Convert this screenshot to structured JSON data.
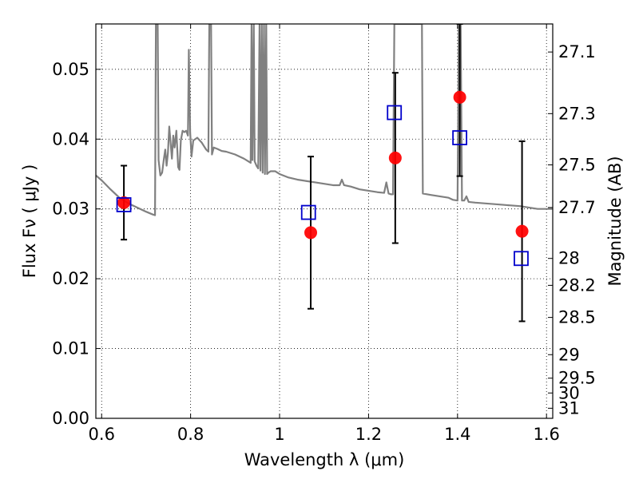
{
  "chart_data": {
    "type": "scatter",
    "xlabel": "Wavelength  λ (μm)",
    "ylabel": "Flux  Fν  ( μJy )",
    "y2label": "Magnitude (AB)",
    "xlim": [
      0.587,
      1.614
    ],
    "ylim": [
      0.0,
      0.0565
    ],
    "grid": true,
    "x_ticks": [
      {
        "value": 0.6,
        "label": "0.6"
      },
      {
        "value": 0.8,
        "label": "0.8"
      },
      {
        "value": 1.0,
        "label": "1"
      },
      {
        "value": 1.2,
        "label": "1.2"
      },
      {
        "value": 1.4,
        "label": "1.4"
      },
      {
        "value": 1.6,
        "label": "1.6"
      }
    ],
    "y_ticks": [
      {
        "value": 0.0,
        "label": "0.00"
      },
      {
        "value": 0.01,
        "label": "0.01"
      },
      {
        "value": 0.02,
        "label": "0.02"
      },
      {
        "value": 0.03,
        "label": "0.03"
      },
      {
        "value": 0.04,
        "label": "0.04"
      },
      {
        "value": 0.05,
        "label": "0.05"
      }
    ],
    "y2_ticks": [
      {
        "value": 27.1,
        "label": "27.1"
      },
      {
        "value": 27.3,
        "label": "27.3"
      },
      {
        "value": 27.5,
        "label": "27.5"
      },
      {
        "value": 27.7,
        "label": "27.7"
      },
      {
        "value": 28.0,
        "label": "28"
      },
      {
        "value": 28.2,
        "label": "28.2"
      },
      {
        "value": 28.5,
        "label": "28.5"
      },
      {
        "value": 29.0,
        "label": "29"
      },
      {
        "value": 29.5,
        "label": "29.5"
      },
      {
        "value": 30.0,
        "label": "30"
      },
      {
        "value": 31.0,
        "label": "31"
      }
    ],
    "series": [
      {
        "kind": "line",
        "color": "#808080",
        "points": [
          [
            0.587,
            0.0348
          ],
          [
            0.6,
            0.0341
          ],
          [
            0.62,
            0.0328
          ],
          [
            0.64,
            0.0316
          ],
          [
            0.66,
            0.0308
          ],
          [
            0.68,
            0.0302
          ],
          [
            0.7,
            0.0296
          ],
          [
            0.715,
            0.0292
          ],
          [
            0.72,
            0.0291
          ],
          [
            0.722,
            0.0565
          ],
          [
            0.726,
            0.0565
          ],
          [
            0.728,
            0.037
          ],
          [
            0.732,
            0.0348
          ],
          [
            0.736,
            0.0352
          ],
          [
            0.74,
            0.0372
          ],
          [
            0.743,
            0.0385
          ],
          [
            0.746,
            0.0362
          ],
          [
            0.749,
            0.038
          ],
          [
            0.752,
            0.0418
          ],
          [
            0.755,
            0.0395
          ],
          [
            0.758,
            0.0372
          ],
          [
            0.761,
            0.0405
          ],
          [
            0.764,
            0.0388
          ],
          [
            0.768,
            0.0412
          ],
          [
            0.772,
            0.036
          ],
          [
            0.775,
            0.0356
          ],
          [
            0.778,
            0.0398
          ],
          [
            0.782,
            0.0412
          ],
          [
            0.786,
            0.041
          ],
          [
            0.79,
            0.0412
          ],
          [
            0.794,
            0.0405
          ],
          [
            0.796,
            0.0528
          ],
          [
            0.799,
            0.041
          ],
          [
            0.802,
            0.0375
          ],
          [
            0.806,
            0.0398
          ],
          [
            0.815,
            0.0402
          ],
          [
            0.825,
            0.0395
          ],
          [
            0.835,
            0.0385
          ],
          [
            0.84,
            0.0382
          ],
          [
            0.842,
            0.0565
          ],
          [
            0.846,
            0.0565
          ],
          [
            0.848,
            0.0378
          ],
          [
            0.852,
            0.0388
          ],
          [
            0.86,
            0.0386
          ],
          [
            0.87,
            0.0383
          ],
          [
            0.88,
            0.0382
          ],
          [
            0.89,
            0.038
          ],
          [
            0.9,
            0.0378
          ],
          [
            0.91,
            0.0375
          ],
          [
            0.92,
            0.0372
          ],
          [
            0.93,
            0.0368
          ],
          [
            0.935,
            0.0366
          ],
          [
            0.937,
            0.0565
          ],
          [
            0.939,
            0.037
          ],
          [
            0.942,
            0.0565
          ],
          [
            0.944,
            0.0368
          ],
          [
            0.948,
            0.0362
          ],
          [
            0.952,
            0.0358
          ],
          [
            0.955,
            0.0565
          ],
          [
            0.957,
            0.0355
          ],
          [
            0.96,
            0.0565
          ],
          [
            0.962,
            0.0352
          ],
          [
            0.965,
            0.0565
          ],
          [
            0.967,
            0.035
          ],
          [
            0.97,
            0.0565
          ],
          [
            0.972,
            0.035
          ],
          [
            0.975,
            0.0352
          ],
          [
            0.98,
            0.0354
          ],
          [
            0.99,
            0.0354
          ],
          [
            1.0,
            0.035
          ],
          [
            1.02,
            0.0345
          ],
          [
            1.04,
            0.0342
          ],
          [
            1.06,
            0.034
          ],
          [
            1.08,
            0.0338
          ],
          [
            1.1,
            0.0336
          ],
          [
            1.12,
            0.0334
          ],
          [
            1.135,
            0.0334
          ],
          [
            1.14,
            0.0342
          ],
          [
            1.145,
            0.0334
          ],
          [
            1.16,
            0.0332
          ],
          [
            1.18,
            0.0328
          ],
          [
            1.2,
            0.0326
          ],
          [
            1.22,
            0.0324
          ],
          [
            1.235,
            0.0323
          ],
          [
            1.24,
            0.0338
          ],
          [
            1.245,
            0.0322
          ],
          [
            1.25,
            0.0321
          ],
          [
            1.255,
            0.0321
          ],
          [
            1.258,
            0.0565
          ],
          [
            1.262,
            0.0565
          ],
          [
            1.266,
            0.0565
          ],
          [
            1.272,
            0.0565
          ],
          [
            1.28,
            0.0565
          ],
          [
            1.29,
            0.0565
          ],
          [
            1.3,
            0.0565
          ],
          [
            1.31,
            0.0565
          ],
          [
            1.32,
            0.0565
          ],
          [
            1.322,
            0.0322
          ],
          [
            1.34,
            0.032
          ],
          [
            1.36,
            0.0318
          ],
          [
            1.38,
            0.0316
          ],
          [
            1.39,
            0.0313
          ],
          [
            1.4,
            0.0312
          ],
          [
            1.403,
            0.0565
          ],
          [
            1.407,
            0.0565
          ],
          [
            1.41,
            0.0312
          ],
          [
            1.415,
            0.0312
          ],
          [
            1.42,
            0.0318
          ],
          [
            1.425,
            0.031
          ],
          [
            1.44,
            0.0309
          ],
          [
            1.46,
            0.0308
          ],
          [
            1.48,
            0.0307
          ],
          [
            1.5,
            0.0306
          ],
          [
            1.52,
            0.0305
          ],
          [
            1.54,
            0.0304
          ],
          [
            1.56,
            0.0302
          ],
          [
            1.58,
            0.03
          ],
          [
            1.6,
            0.03
          ],
          [
            1.614,
            0.03
          ]
        ]
      },
      {
        "kind": "points",
        "marker": "circle",
        "color": "#ff0000",
        "points": [
          {
            "x": 0.65,
            "y": 0.0309
          },
          {
            "x": 1.07,
            "y": 0.0266
          },
          {
            "x": 1.26,
            "y": 0.0373
          },
          {
            "x": 1.405,
            "y": 0.046
          },
          {
            "x": 1.545,
            "y": 0.0268
          }
        ]
      },
      {
        "kind": "points",
        "marker": "square",
        "color": "#0000cc",
        "points": [
          {
            "x": 0.65,
            "y": 0.0306
          },
          {
            "x": 1.065,
            "y": 0.0295
          },
          {
            "x": 1.258,
            "y": 0.0438
          },
          {
            "x": 1.405,
            "y": 0.0402
          },
          {
            "x": 1.543,
            "y": 0.0229
          }
        ]
      },
      {
        "kind": "errorbars",
        "color": "#000000",
        "bars": [
          {
            "x": 0.65,
            "low": 0.0256,
            "high": 0.0362
          },
          {
            "x": 1.07,
            "low": 0.0157,
            "high": 0.0375
          },
          {
            "x": 1.26,
            "low": 0.0251,
            "high": 0.0495
          },
          {
            "x": 1.405,
            "low": 0.0347,
            "high": 0.0565
          },
          {
            "x": 1.545,
            "low": 0.0139,
            "high": 0.0397
          }
        ]
      }
    ]
  }
}
